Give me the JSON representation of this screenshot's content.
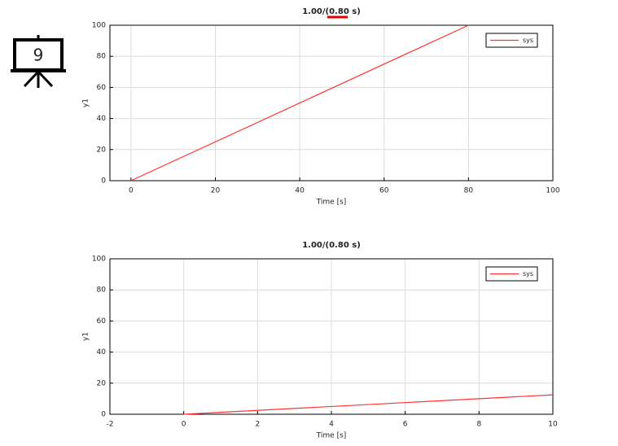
{
  "icon": {
    "label": "9"
  },
  "chart_data": [
    {
      "type": "line",
      "title": "1.00/(0.80 s)",
      "xlabel": "Time [s]",
      "ylabel": "y1",
      "x": [
        0,
        80
      ],
      "series": [
        {
          "name": "sys",
          "color": "#ff3333",
          "values": [
            0,
            100
          ]
        }
      ],
      "xlim": [
        -5,
        100
      ],
      "xticks": [
        0,
        20,
        40,
        60,
        80,
        100
      ],
      "ylim": [
        0,
        100
      ],
      "yticks": [
        0,
        20,
        40,
        60,
        80,
        100
      ],
      "grid": true,
      "legend": "upper right"
    },
    {
      "type": "line",
      "title": "1.00/(0.80 s)",
      "xlabel": "Time [s]",
      "ylabel": "y1",
      "x": [
        0,
        10
      ],
      "series": [
        {
          "name": "sys",
          "color": "#ff3333",
          "values": [
            0,
            12.5
          ]
        }
      ],
      "xlim": [
        -2,
        10
      ],
      "xticks": [
        -2,
        0,
        2,
        4,
        6,
        8,
        10
      ],
      "ylim": [
        0,
        100
      ],
      "yticks": [
        0,
        20,
        40,
        60,
        80,
        100
      ],
      "grid": true,
      "legend": "upper right"
    }
  ]
}
